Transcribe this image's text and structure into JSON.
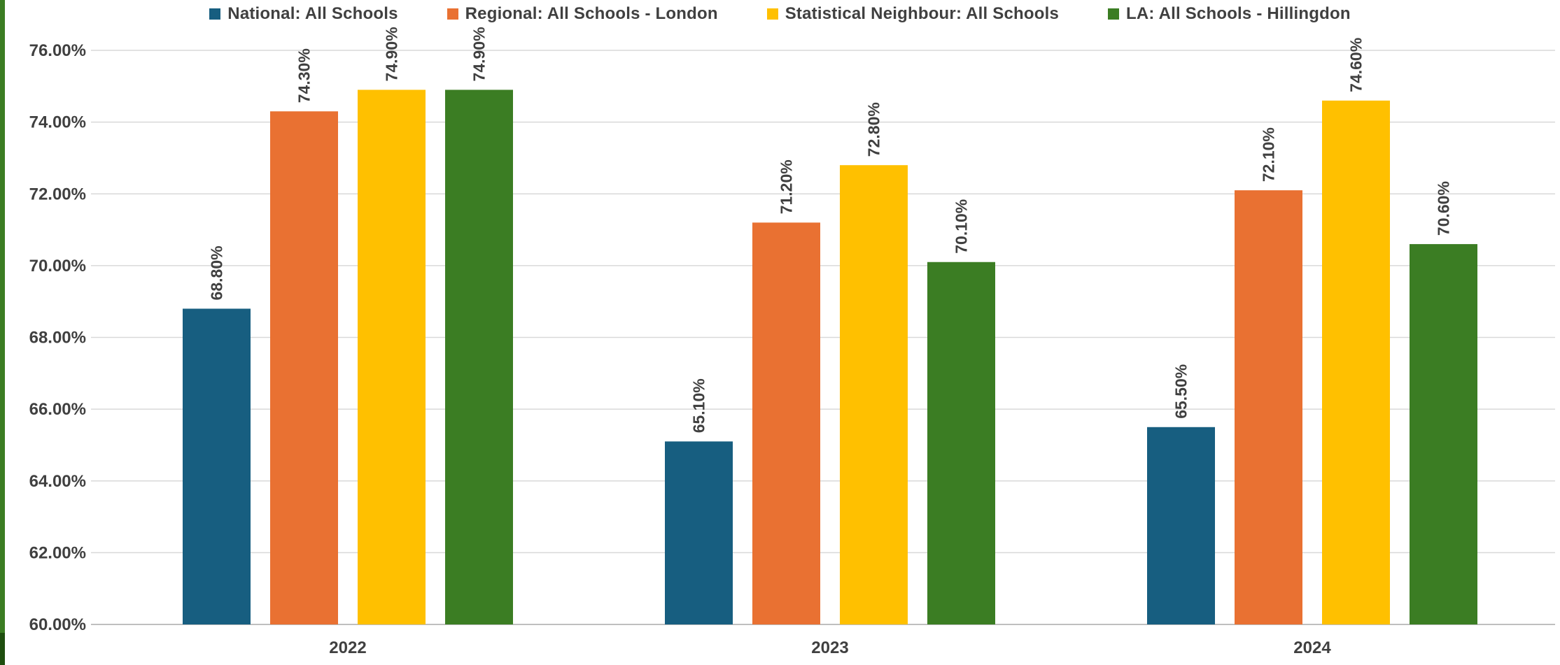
{
  "chart_data": {
    "type": "bar",
    "title": "",
    "xlabel": "",
    "ylabel": "",
    "categories": [
      "2022",
      "2023",
      "2024"
    ],
    "ylim": [
      60,
      76
    ],
    "yticks": [
      60,
      62,
      64,
      66,
      68,
      70,
      72,
      74,
      76
    ],
    "ytick_labels": [
      "60.00%",
      "62.00%",
      "64.00%",
      "66.00%",
      "68.00%",
      "70.00%",
      "72.00%",
      "74.00%",
      "76.00%"
    ],
    "grid": "horizontal",
    "legend_position": "top",
    "series": [
      {
        "name": "National: All Schools",
        "color": "#175e80",
        "values": [
          68.8,
          65.1,
          65.5
        ],
        "labels": [
          "68.80%",
          "65.10%",
          "65.50%"
        ]
      },
      {
        "name": "Regional: All Schools - London",
        "color": "#e97132",
        "values": [
          74.3,
          71.2,
          72.1
        ],
        "labels": [
          "74.30%",
          "71.20%",
          "72.10%"
        ]
      },
      {
        "name": "Statistical Neighbour: All Schools",
        "color": "#ffc000",
        "values": [
          74.9,
          72.8,
          74.6
        ],
        "labels": [
          "74.90%",
          "72.80%",
          "74.60%"
        ]
      },
      {
        "name": "LA: All Schools - Hillingdon",
        "color": "#3b7d23",
        "values": [
          74.9,
          70.1,
          70.6
        ],
        "labels": [
          "74.90%",
          "70.10%",
          "70.60%"
        ]
      }
    ]
  }
}
